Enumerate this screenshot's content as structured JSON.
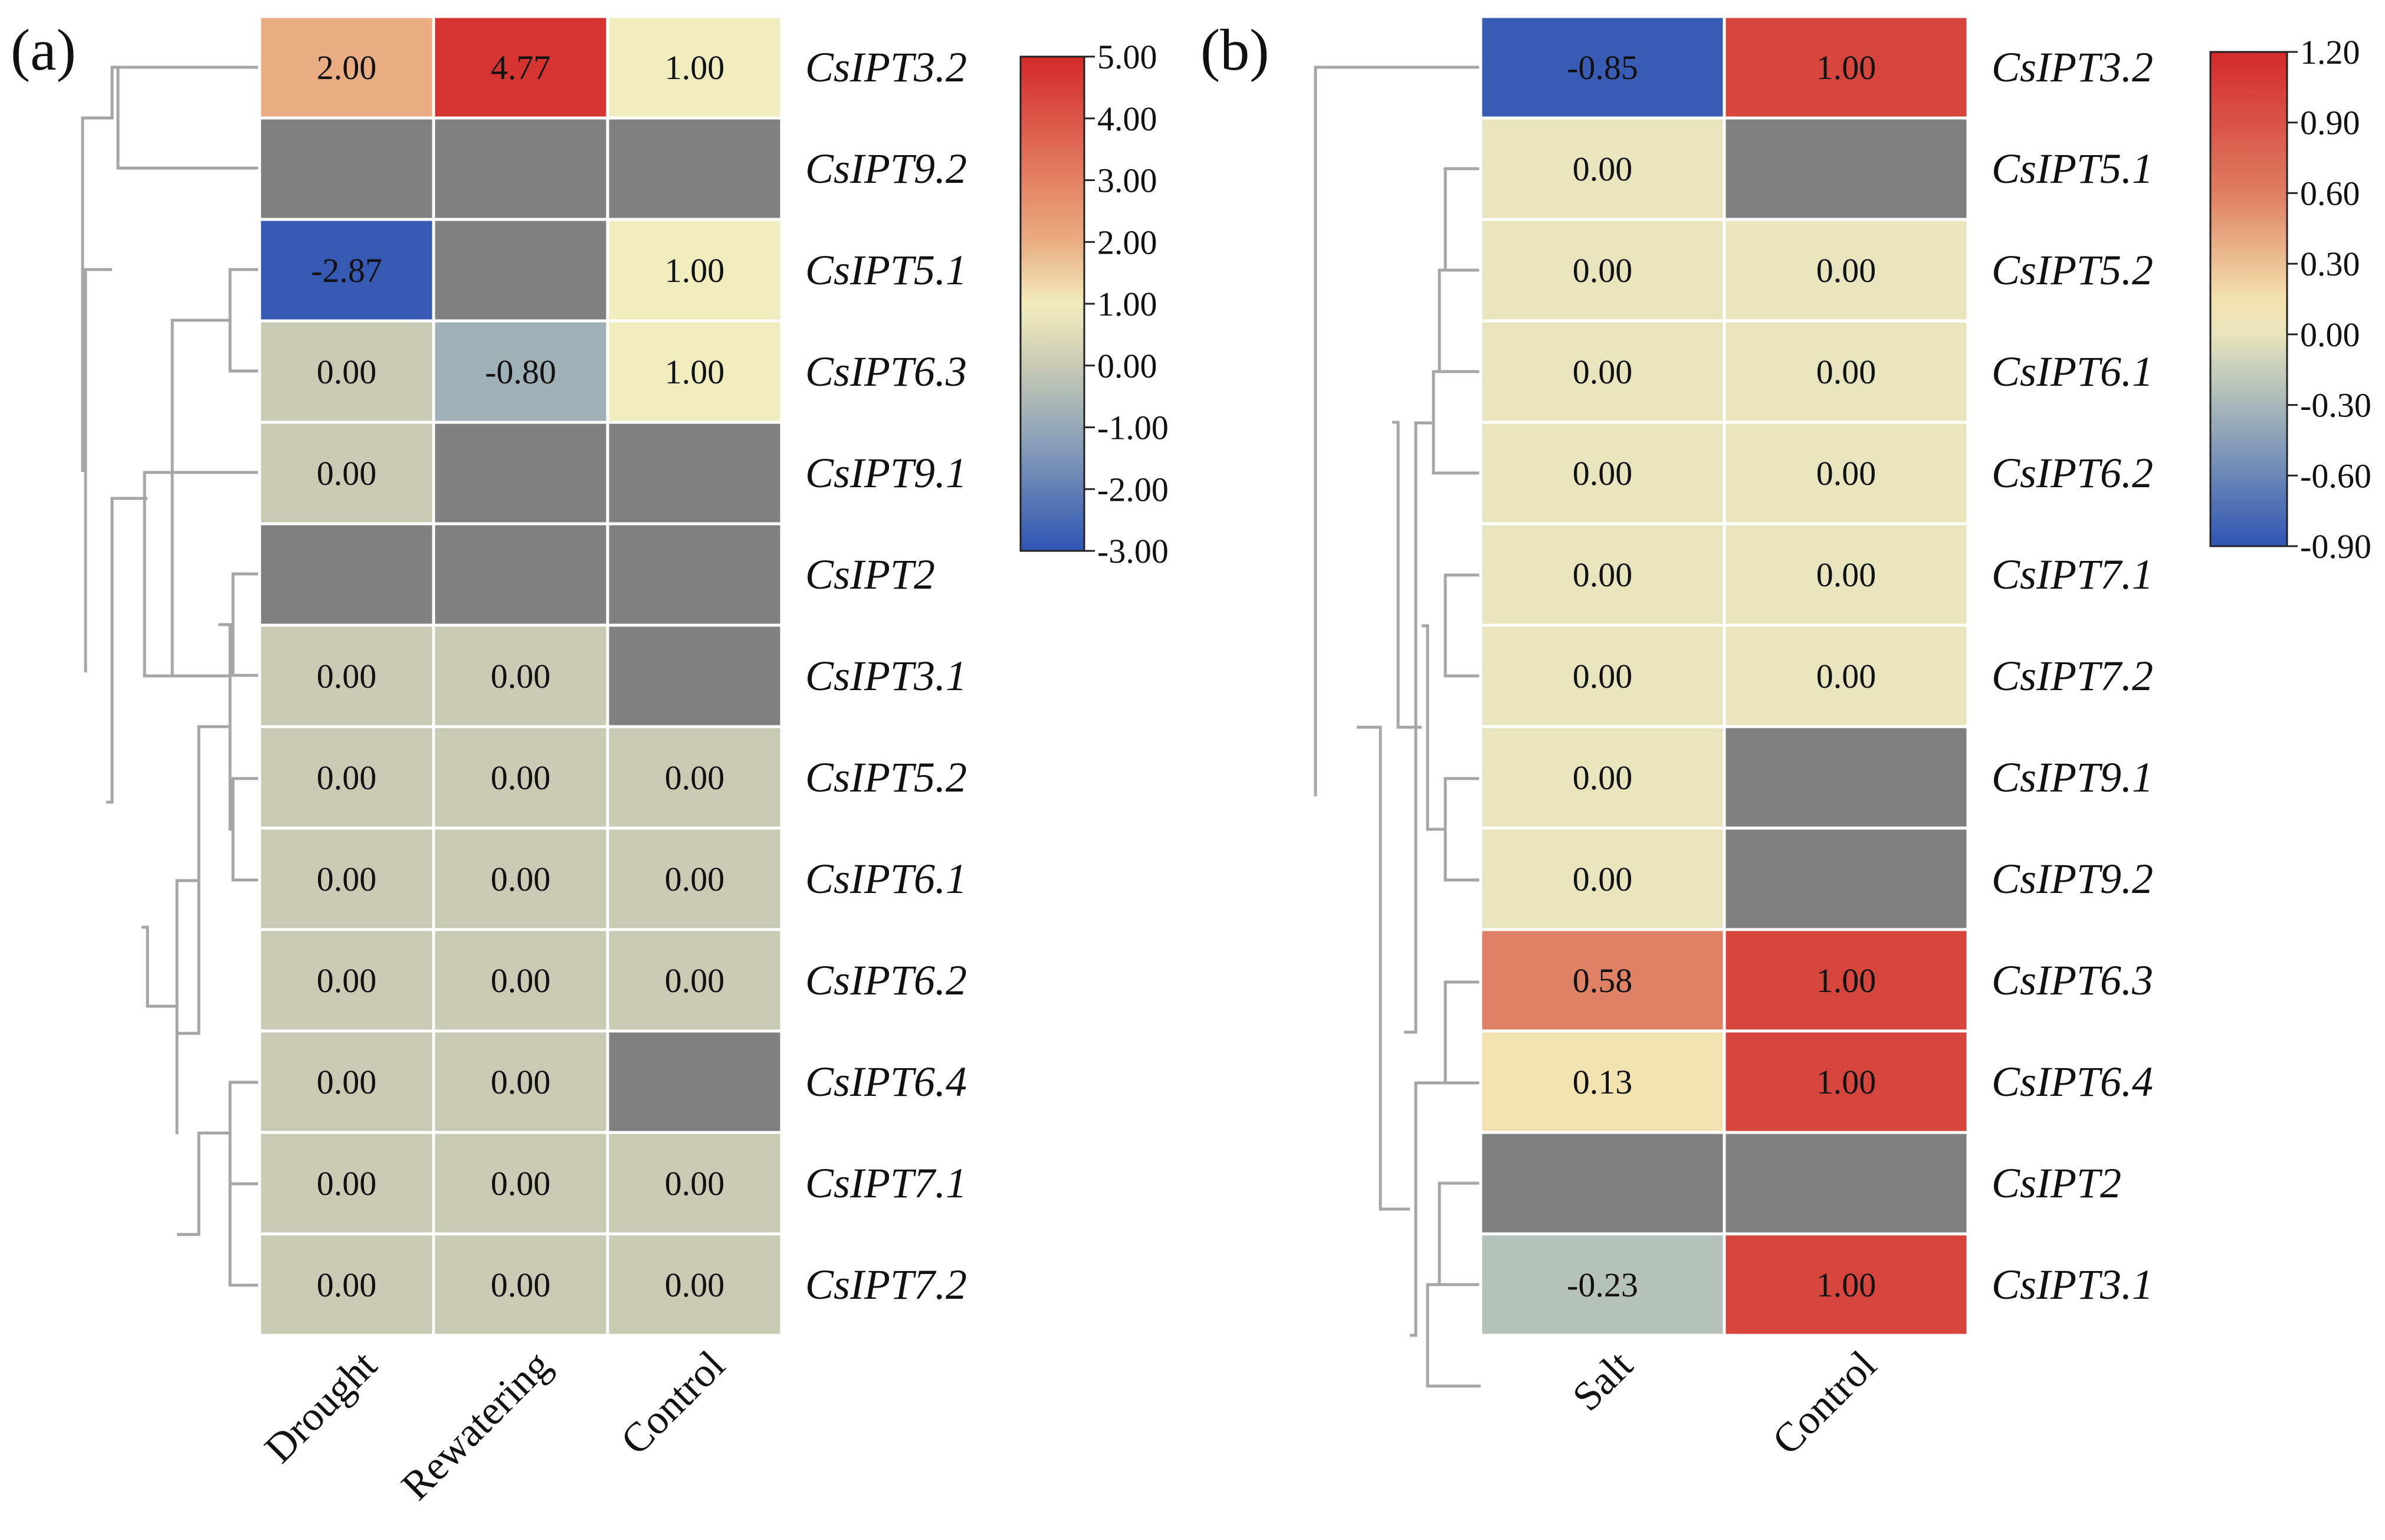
{
  "chart_data": [
    {
      "panel_label": "(a)",
      "type": "heatmap",
      "columns": [
        "Drought",
        "Rewatering",
        "Control"
      ],
      "rows": [
        "CsIPT3.2",
        "CsIPT9.2",
        "CsIPT5.1",
        "CsIPT6.3",
        "CsIPT9.1",
        "CsIPT2",
        "CsIPT3.1",
        "CsIPT5.2",
        "CsIPT6.1",
        "CsIPT6.2",
        "CsIPT6.4",
        "CsIPT7.1",
        "CsIPT7.2"
      ],
      "values": [
        [
          2.0,
          4.77,
          1.0
        ],
        [
          null,
          null,
          null
        ],
        [
          -2.87,
          null,
          1.0
        ],
        [
          0.0,
          -0.8,
          1.0
        ],
        [
          0.0,
          null,
          null
        ],
        [
          null,
          null,
          null
        ],
        [
          0.0,
          0.0,
          null
        ],
        [
          0.0,
          0.0,
          0.0
        ],
        [
          0.0,
          0.0,
          0.0
        ],
        [
          0.0,
          0.0,
          0.0
        ],
        [
          0.0,
          0.0,
          null
        ],
        [
          0.0,
          0.0,
          0.0
        ],
        [
          0.0,
          0.0,
          0.0
        ]
      ],
      "cell_labels": [
        [
          "2.00",
          "4.77",
          "1.00"
        ],
        [
          "",
          "",
          ""
        ],
        [
          "-2.87",
          "",
          "1.00"
        ],
        [
          "0.00",
          "-0.80",
          "1.00"
        ],
        [
          "0.00",
          "",
          ""
        ],
        [
          "",
          "",
          ""
        ],
        [
          "0.00",
          "0.00",
          ""
        ],
        [
          "0.00",
          "0.00",
          "0.00"
        ],
        [
          "0.00",
          "0.00",
          "0.00"
        ],
        [
          "0.00",
          "0.00",
          "0.00"
        ],
        [
          "0.00",
          "0.00",
          ""
        ],
        [
          "0.00",
          "0.00",
          "0.00"
        ],
        [
          "0.00",
          "0.00",
          "0.00"
        ]
      ],
      "colorbar": {
        "range": [
          -3.0,
          5.0
        ],
        "ticks": [
          "5.00",
          "4.00",
          "3.00",
          "2.00",
          "1.00",
          "0.00",
          "-1.00",
          "-2.00",
          "-3.00"
        ],
        "stops": [
          {
            "value": -3.0,
            "color": "#2f55b4"
          },
          {
            "value": -1.0,
            "color": "#96a9b8"
          },
          {
            "value": 0.0,
            "color": "#c9cab4"
          },
          {
            "value": 1.0,
            "color": "#f1ecbd"
          },
          {
            "value": 2.0,
            "color": "#eaac82"
          },
          {
            "value": 5.0,
            "color": "#d42a2a"
          }
        ]
      },
      "missing_color": "#808080",
      "dendrogram": "rows clustered; tree drawn on the left of the heatmap"
    },
    {
      "panel_label": "(b)",
      "type": "heatmap",
      "columns": [
        "Salt",
        "Control"
      ],
      "rows": [
        "CsIPT3.2",
        "CsIPT5.1",
        "CsIPT5.2",
        "CsIPT6.1",
        "CsIPT6.2",
        "CsIPT7.1",
        "CsIPT7.2",
        "CsIPT9.1",
        "CsIPT9.2",
        "CsIPT6.3",
        "CsIPT6.4",
        "CsIPT2",
        "CsIPT3.1"
      ],
      "values": [
        [
          -0.85,
          1.0
        ],
        [
          0.0,
          null
        ],
        [
          0.0,
          0.0
        ],
        [
          0.0,
          0.0
        ],
        [
          0.0,
          0.0
        ],
        [
          0.0,
          0.0
        ],
        [
          0.0,
          0.0
        ],
        [
          0.0,
          null
        ],
        [
          0.0,
          null
        ],
        [
          0.58,
          1.0
        ],
        [
          0.13,
          1.0
        ],
        [
          null,
          null
        ],
        [
          -0.23,
          1.0
        ]
      ],
      "cell_labels": [
        [
          "-0.85",
          "1.00"
        ],
        [
          "0.00",
          ""
        ],
        [
          "0.00",
          "0.00"
        ],
        [
          "0.00",
          "0.00"
        ],
        [
          "0.00",
          "0.00"
        ],
        [
          "0.00",
          "0.00"
        ],
        [
          "0.00",
          "0.00"
        ],
        [
          "0.00",
          ""
        ],
        [
          "0.00",
          ""
        ],
        [
          "0.58",
          "1.00"
        ],
        [
          "0.13",
          "1.00"
        ],
        [
          "",
          ""
        ],
        [
          "-0.23",
          "1.00"
        ]
      ],
      "colorbar": {
        "range": [
          -0.9,
          1.2
        ],
        "ticks": [
          "1.20",
          "0.90",
          "0.60",
          "0.30",
          "0.00",
          "-0.30",
          "-0.60",
          "-0.90"
        ],
        "stops": [
          {
            "value": -0.9,
            "color": "#2f55b4"
          },
          {
            "value": -0.3,
            "color": "#a7b7b8"
          },
          {
            "value": 0.0,
            "color": "#e8e4bd"
          },
          {
            "value": 0.15,
            "color": "#f3e2ad"
          },
          {
            "value": 0.6,
            "color": "#de7d62"
          },
          {
            "value": 1.2,
            "color": "#d42a2a"
          }
        ]
      },
      "missing_color": "#808080",
      "dendrogram": "rows clustered; tree drawn on the left of the heatmap"
    }
  ]
}
